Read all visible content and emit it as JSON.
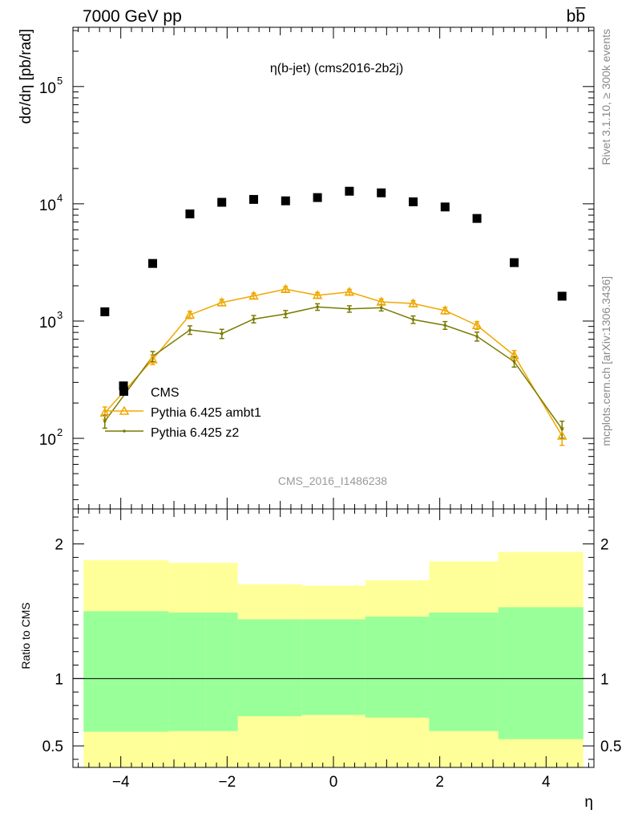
{
  "header": {
    "left": "7000 GeV pp",
    "right": "bb̅"
  },
  "side_text": {
    "top": "Rivet 3.1.10, ≥ 300k events",
    "bottom": "mcplots.cern.ch [arXiv:1306.3436]"
  },
  "chart_data": [
    {
      "type": "scatter",
      "title": "η(b-jet) (cms2016-2b2j)",
      "watermark": "CMS_2016_I1486238",
      "ylabel": "dσ/dη [pb/rad]",
      "yscale": "log",
      "ylim": [
        25,
        320000
      ],
      "xlim": [
        -4.9,
        4.9
      ],
      "y_ticks": [
        {
          "value": 100,
          "label": "10",
          "exp": "2"
        },
        {
          "value": 1000,
          "label": "10",
          "exp": "3"
        },
        {
          "value": 10000,
          "label": "10",
          "exp": "4"
        },
        {
          "value": 100000,
          "label": "10",
          "exp": "5"
        }
      ],
      "legend": {
        "position": "bottom-left",
        "entries": [
          "CMS",
          "Pythia 6.425 ambt1",
          "Pythia 6.425 z2"
        ]
      },
      "series": [
        {
          "name": "CMS",
          "color": "#000000",
          "marker": "square",
          "x": [
            -4.3,
            -3.95,
            -3.4,
            -2.7,
            -2.1,
            -1.5,
            -0.9,
            -0.3,
            0.3,
            0.9,
            1.5,
            2.1,
            2.7,
            3.4,
            4.3
          ],
          "y": [
            1200,
            280,
            3100,
            8200,
            10300,
            10900,
            10600,
            11300,
            12800,
            12400,
            10400,
            9400,
            7500,
            3150,
            1630
          ]
        },
        {
          "name": "Pythia 6.425 ambt1",
          "color": "#f0a800",
          "marker": "triangle",
          "x": [
            -4.3,
            -3.4,
            -2.7,
            -2.1,
            -1.5,
            -0.9,
            -0.3,
            0.3,
            0.9,
            1.5,
            2.1,
            2.7,
            3.4,
            4.3
          ],
          "y": [
            165,
            470,
            1130,
            1440,
            1640,
            1870,
            1660,
            1770,
            1460,
            1410,
            1230,
            920,
            510,
            105
          ],
          "err": [
            20,
            45,
            80,
            90,
            90,
            100,
            90,
            95,
            85,
            85,
            80,
            70,
            50,
            18
          ]
        },
        {
          "name": "Pythia 6.425 z2",
          "color": "#7a7a00",
          "marker": "dot",
          "x": [
            -4.3,
            -3.4,
            -2.7,
            -2.1,
            -1.5,
            -0.9,
            -0.3,
            0.3,
            0.9,
            1.5,
            2.1,
            2.7,
            3.4,
            4.3
          ],
          "y": [
            140,
            500,
            840,
            780,
            1040,
            1150,
            1320,
            1270,
            1300,
            1030,
            920,
            740,
            450,
            120
          ],
          "err": [
            18,
            50,
            70,
            70,
            75,
            80,
            85,
            80,
            80,
            75,
            70,
            65,
            45,
            20
          ]
        }
      ]
    },
    {
      "type": "area",
      "ylabel": "Ratio to CMS",
      "xlabel": "η",
      "ylim": [
        0.34,
        2.26
      ],
      "xlim": [
        -4.9,
        4.9
      ],
      "x_ticks": [
        -4,
        -2,
        0,
        2,
        4
      ],
      "x_tick_labels": [
        "−4",
        "−2",
        "0",
        "2",
        "4"
      ],
      "y_ticks": [
        0.5,
        1,
        2
      ],
      "y_tick_labels": [
        "0.5",
        "1",
        "2"
      ],
      "reference": 1,
      "colors": {
        "outer": "#ffff99",
        "inner": "#99ff99"
      },
      "bands": [
        {
          "x0": -4.7,
          "x1": -3.1,
          "lo_outer": 0.34,
          "lo_inner": 0.605,
          "hi_inner": 1.5,
          "hi_outer": 1.88
        },
        {
          "x0": -3.1,
          "x1": -2.4,
          "lo_outer": 0.34,
          "lo_inner": 0.61,
          "hi_inner": 1.49,
          "hi_outer": 1.86
        },
        {
          "x0": -2.4,
          "x1": -1.8,
          "lo_outer": 0.34,
          "lo_inner": 0.61,
          "hi_inner": 1.49,
          "hi_outer": 1.86
        },
        {
          "x0": -1.8,
          "x1": -0.6,
          "lo_outer": 0.34,
          "lo_inner": 0.72,
          "hi_inner": 1.44,
          "hi_outer": 1.7
        },
        {
          "x0": -0.6,
          "x1": 0.6,
          "lo_outer": 0.34,
          "lo_inner": 0.73,
          "hi_inner": 1.44,
          "hi_outer": 1.69
        },
        {
          "x0": 0.6,
          "x1": 1.8,
          "lo_outer": 0.34,
          "lo_inner": 0.71,
          "hi_inner": 1.46,
          "hi_outer": 1.73
        },
        {
          "x0": 1.8,
          "x1": 3.1,
          "lo_outer": 0.34,
          "lo_inner": 0.61,
          "hi_inner": 1.49,
          "hi_outer": 1.87
        },
        {
          "x0": 3.1,
          "x1": 4.7,
          "lo_outer": 0.34,
          "lo_inner": 0.55,
          "hi_inner": 1.53,
          "hi_outer": 1.94
        }
      ]
    }
  ]
}
